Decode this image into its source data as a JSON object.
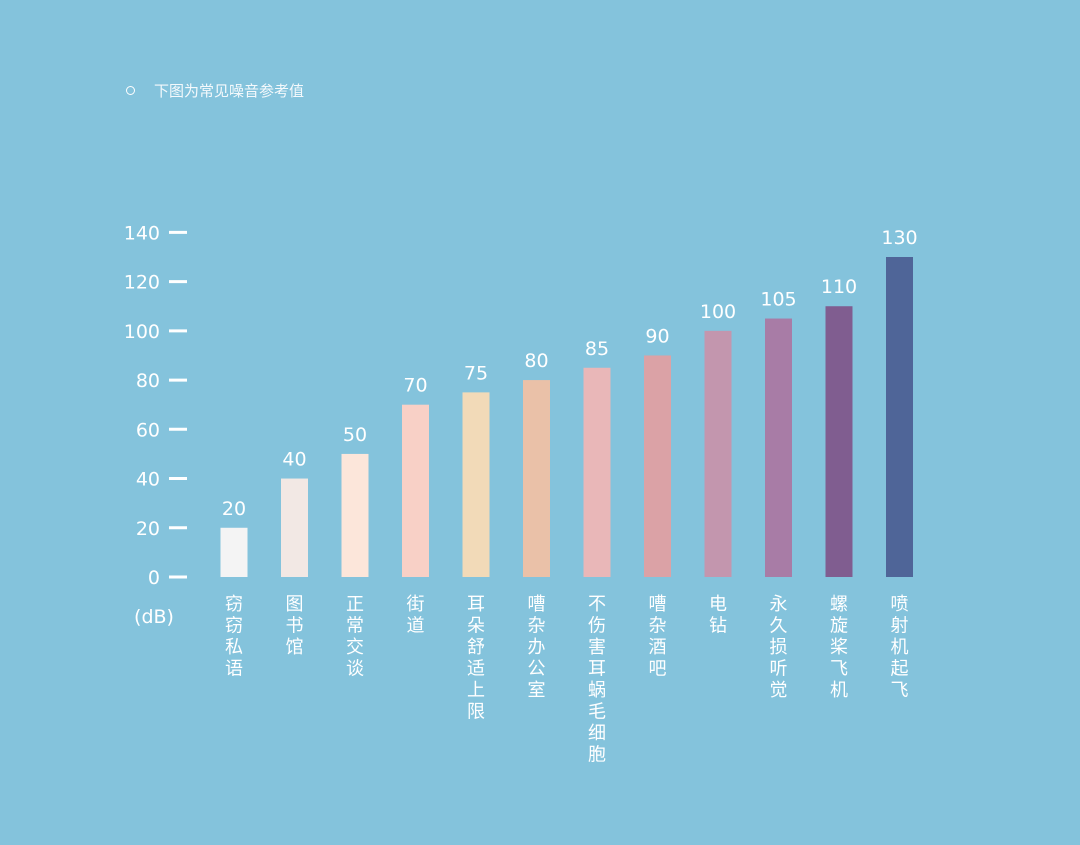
{
  "note": {
    "text": "下图为常见噪音参考值"
  },
  "chart_data": {
    "type": "bar",
    "unit": "(dB)",
    "ylim": [
      0,
      140
    ],
    "yticks": [
      0,
      20,
      40,
      60,
      80,
      100,
      120,
      140
    ],
    "grid": false,
    "categories": [
      "窃窃私语",
      "图书馆",
      "正常交谈",
      "街道",
      "耳朵舒适上限",
      "嘈杂办公室",
      "不伤害耳蜗毛细胞",
      "嘈杂酒吧",
      "电钻",
      "永久损听觉",
      "螺旋桨飞机",
      "喷射机起飞"
    ],
    "values": [
      20,
      40,
      50,
      70,
      75,
      80,
      85,
      90,
      100,
      105,
      110,
      130
    ],
    "colors": [
      "#f4f4f4",
      "#f2e8e4",
      "#fce6da",
      "#f8d0c6",
      "#f2dab8",
      "#eac1a8",
      "#e9b7b8",
      "#dba2a6",
      "#c396ae",
      "#a87ca6",
      "#805d90",
      "#4f6598"
    ]
  }
}
